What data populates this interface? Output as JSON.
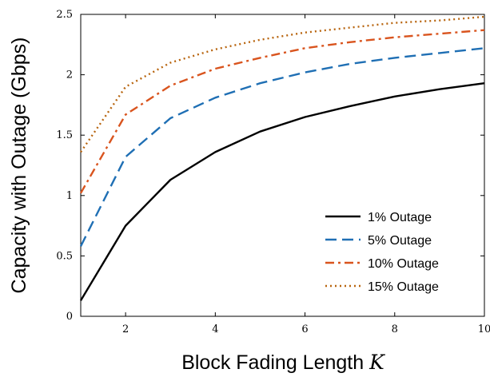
{
  "chart_data": {
    "type": "line",
    "xlabel": "Block Fading Length",
    "xlabel_symbol": "K",
    "ylabel": "Capacity with Outage (Gbps)",
    "xlim": [
      1,
      10
    ],
    "ylim": [
      0,
      2.5
    ],
    "x_ticks": [
      2,
      4,
      6,
      8,
      10
    ],
    "y_ticks": [
      0,
      0.5,
      1,
      1.5,
      2,
      2.5
    ],
    "x_tick_labels": [
      "2",
      "4",
      "6",
      "8",
      "10"
    ],
    "y_tick_labels": [
      "0",
      "0.5",
      "1",
      "1.5",
      "2",
      "2.5"
    ],
    "grid": false,
    "legend_position": "bottom-right",
    "x": [
      1,
      2,
      3,
      4,
      5,
      6,
      7,
      8,
      9,
      10
    ],
    "series": [
      {
        "name": "1% Outage",
        "color": "#000000",
        "dash": "solid",
        "values": [
          0.13,
          0.75,
          1.13,
          1.36,
          1.53,
          1.65,
          1.74,
          1.82,
          1.88,
          1.93
        ]
      },
      {
        "name": "5% Outage",
        "color": "#1f6fb4",
        "dash": "dashed",
        "values": [
          0.58,
          1.32,
          1.64,
          1.81,
          1.93,
          2.02,
          2.09,
          2.14,
          2.18,
          2.22
        ]
      },
      {
        "name": "10% Outage",
        "color": "#d9541e",
        "dash": "dashdot",
        "values": [
          1.02,
          1.67,
          1.91,
          2.05,
          2.14,
          2.22,
          2.27,
          2.31,
          2.34,
          2.37
        ]
      },
      {
        "name": "15% Outage",
        "color": "#b8650f",
        "dash": "dotted",
        "values": [
          1.36,
          1.9,
          2.1,
          2.21,
          2.29,
          2.35,
          2.39,
          2.43,
          2.45,
          2.48
        ]
      }
    ]
  }
}
